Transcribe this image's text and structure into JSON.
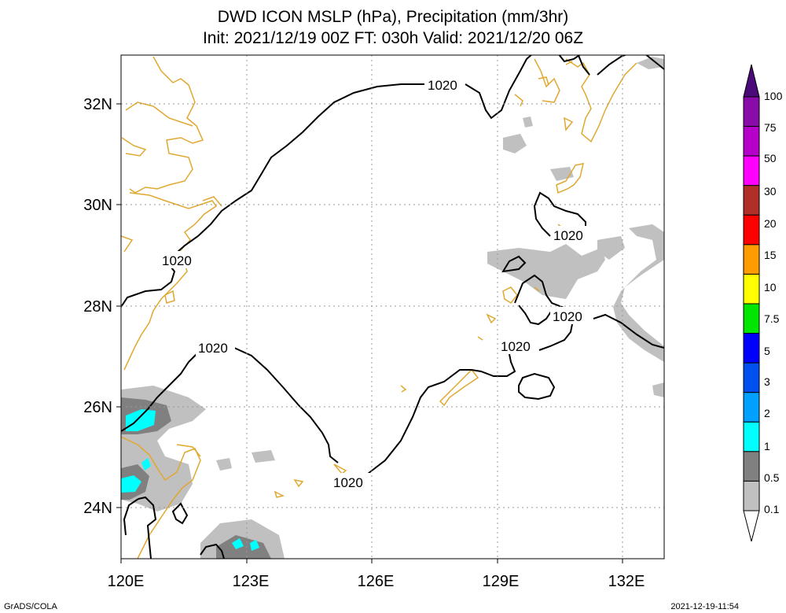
{
  "title": {
    "line1": "DWD ICON MSLP (hPa), Precipitation (mm/3hr)",
    "line2": "Init: 2021/12/19 00Z  FT: 030h  Valid: 2021/12/20 06Z"
  },
  "map": {
    "lon_labels": [
      "120E",
      "123E",
      "126E",
      "129E",
      "132E"
    ],
    "lat_labels": [
      "32N",
      "30N",
      "28N",
      "26N",
      "24N"
    ],
    "isobar_labels": [
      "1020",
      "1020",
      "1020",
      "1020",
      "1020",
      "1020",
      "1020"
    ],
    "coast_color": "#e0a830",
    "isobar_color": "#000000"
  },
  "colorbar": {
    "labels": [
      "100",
      "75",
      "50",
      "30",
      "20",
      "15",
      "10",
      "7.5",
      "5",
      "3",
      "2",
      "1",
      "0.5",
      "0.1"
    ],
    "colors": [
      "#8a0ca8",
      "#b400c8",
      "#ff00ff",
      "#b03028",
      "#ff0000",
      "#ff9c00",
      "#ffff00",
      "#00e600",
      "#0000ff",
      "#0050f0",
      "#00a0ff",
      "#00ffff",
      "#808080",
      "#c0c0c0"
    ],
    "top_color": "#4a0a7a"
  },
  "footer": {
    "left": "GrADS/COLA",
    "right": "2021-12-19-11:54"
  }
}
